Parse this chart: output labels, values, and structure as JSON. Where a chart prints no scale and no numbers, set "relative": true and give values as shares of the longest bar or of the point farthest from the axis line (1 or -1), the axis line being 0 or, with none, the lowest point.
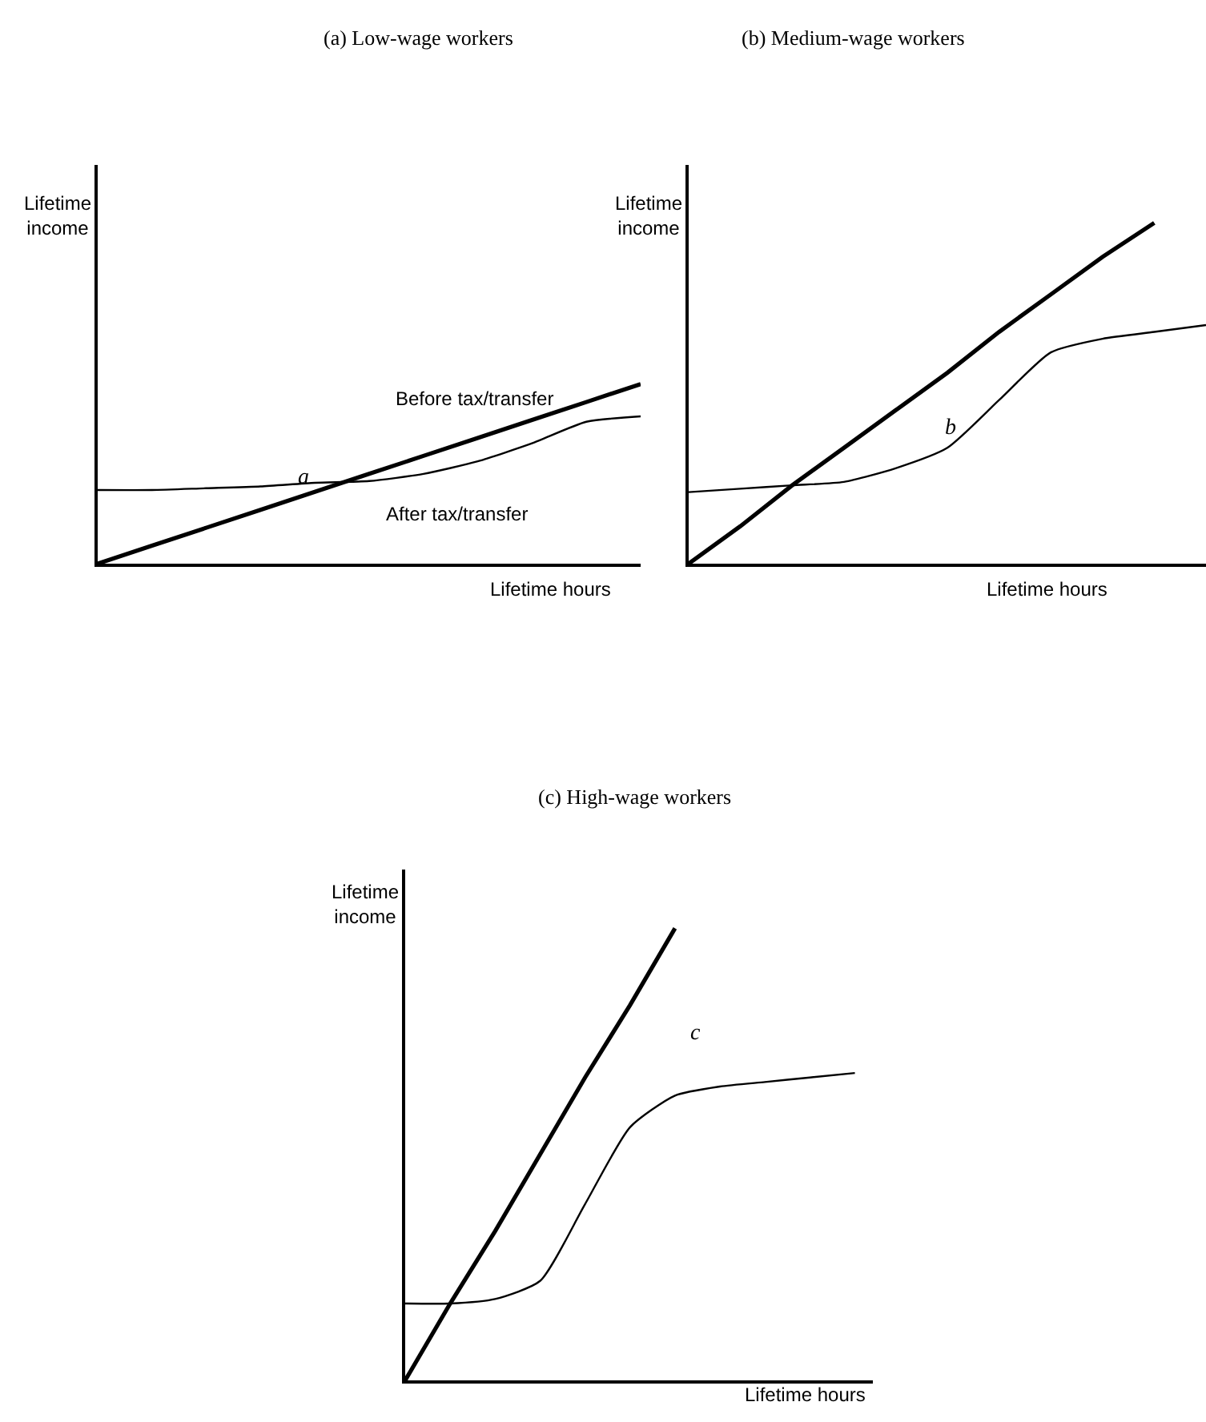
{
  "chart_data": [
    {
      "type": "line",
      "title": "(a) Low-wage workers",
      "xlabel": "Lifetime hours",
      "ylabel": "Lifetime income",
      "relative": true,
      "categories": [
        null,
        null,
        null,
        null,
        null,
        null,
        null,
        null,
        null,
        null,
        null
      ],
      "series": [
        {
          "name": "Before tax/transfer",
          "color": "#000000",
          "values": [
            0,
            0.1,
            0.2,
            0.3,
            0.4,
            0.5,
            0.6,
            0.7,
            0.8,
            0.9,
            1.0
          ]
        },
        {
          "name": "After tax/transfer",
          "color": "#000000",
          "values": [
            0.41,
            0.41,
            0.42,
            0.43,
            0.45,
            0.46,
            0.5,
            0.57,
            0.67,
            0.79,
            0.82
          ]
        }
      ],
      "annotations": [
        "a"
      ],
      "grid": false,
      "legend": false,
      "tick_labels": false,
      "marker": "none",
      "line_style": "solid"
    },
    {
      "type": "line",
      "title": "(b) Medium-wage workers",
      "xlabel": "Lifetime hours",
      "ylabel": "Lifetime income",
      "relative": true,
      "categories": [
        null,
        null,
        null,
        null,
        null,
        null,
        null,
        null,
        null,
        null,
        null
      ],
      "series": [
        {
          "color": "#000000",
          "values": [
            0,
            0.11,
            0.23,
            0.34,
            0.45,
            0.56,
            0.68,
            0.79,
            0.9,
            1.0,
            null
          ]
        },
        {
          "color": "#000000",
          "values": [
            0.21,
            0.22,
            0.23,
            0.24,
            0.28,
            0.34,
            0.48,
            0.62,
            0.66,
            0.68,
            0.7
          ]
        }
      ],
      "annotations": [
        "b"
      ],
      "grid": false,
      "legend": false,
      "tick_labels": false,
      "marker": "none",
      "line_style": "solid"
    },
    {
      "type": "line",
      "title": "(c) High-wage workers",
      "xlabel": "Lifetime hours",
      "ylabel": "Lifetime income",
      "relative": true,
      "categories": [
        null,
        null,
        null,
        null,
        null,
        null,
        null,
        null,
        null,
        null,
        null
      ],
      "series": [
        {
          "color": "#000000",
          "values": [
            0,
            0.17,
            0.33,
            0.5,
            0.67,
            0.83,
            1.0,
            null,
            null,
            null,
            null
          ]
        },
        {
          "color": "#000000",
          "values": [
            0.17,
            0.17,
            0.18,
            0.22,
            0.39,
            0.56,
            0.63,
            0.65,
            0.66,
            0.67,
            0.68
          ]
        }
      ],
      "annotations": [
        "c"
      ],
      "grid": false,
      "legend": false,
      "tick_labels": false,
      "marker": "none",
      "line_style": "solid"
    }
  ]
}
